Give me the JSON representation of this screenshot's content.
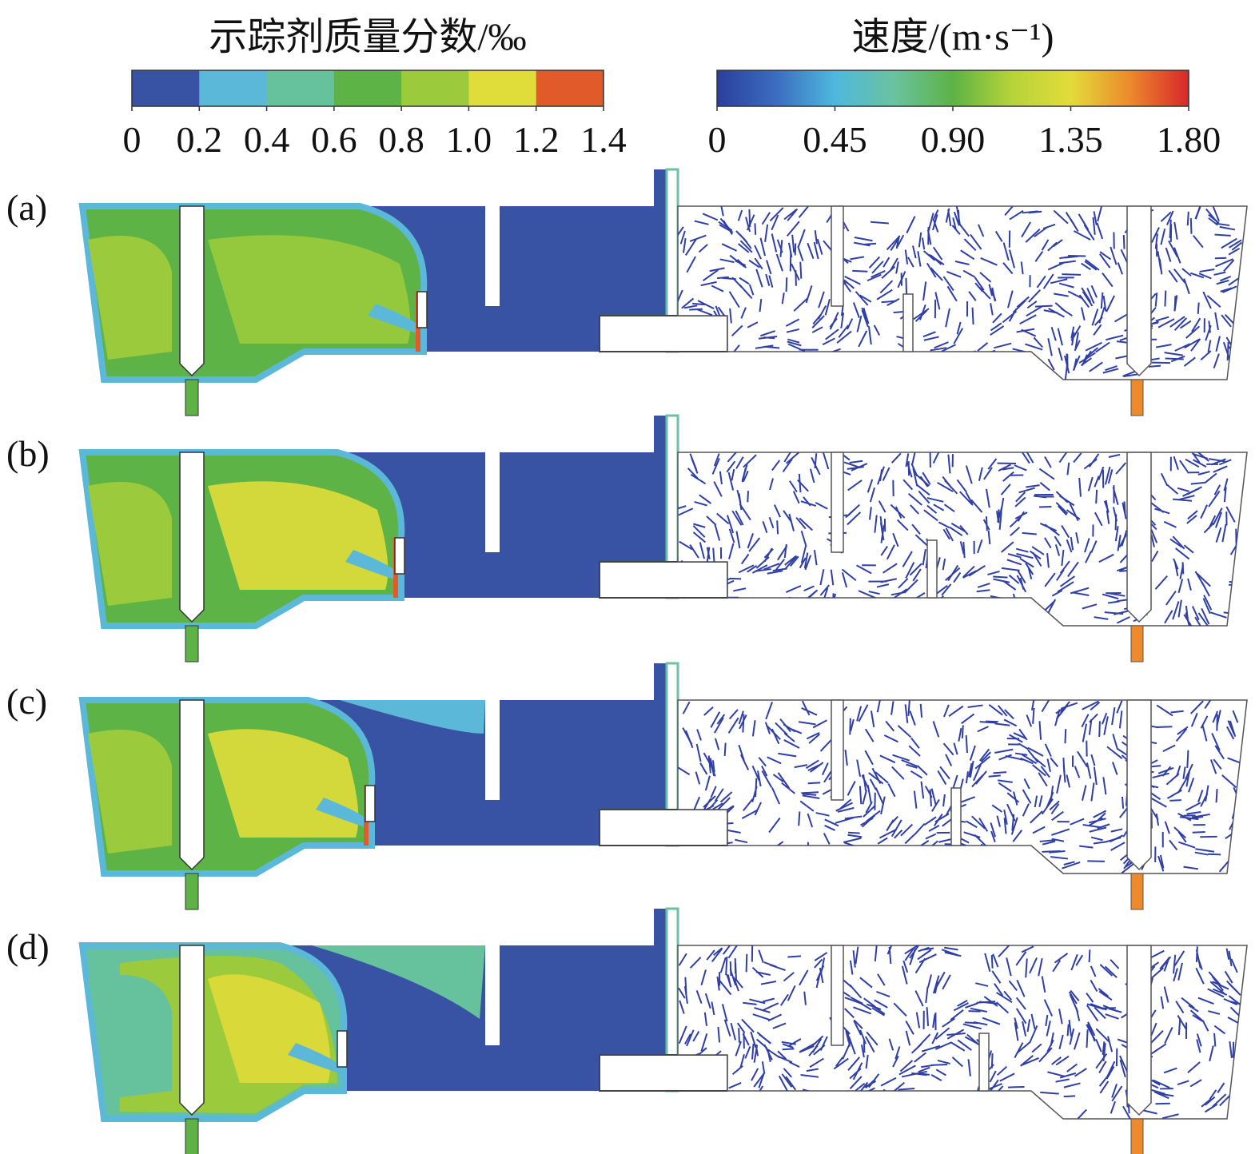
{
  "legends": [
    {
      "title": "示踪剂质量分数/‰",
      "colors": [
        "#3953a4",
        "#5bb8d8",
        "#66c29c",
        "#5db346",
        "#9bcb3c",
        "#e0dc3a",
        "#e05a2a"
      ],
      "ticks": [
        0,
        0.2,
        0.4,
        0.6,
        0.8,
        {
          "value": 1,
          "label": "1.0"
        },
        1.2,
        1.4
      ]
    },
    {
      "title": "速度/(m·s⁻¹)",
      "colors": [
        "#2a3f9c",
        "#3b6cc0",
        "#4fb8de",
        "#6ac2a0",
        "#5db346",
        "#b6d33a",
        "#e3dc3a",
        "#ec8a2c",
        "#d8262a"
      ],
      "ticks": [
        0,
        0.45,
        {
          "value": 0.9,
          "label": "0.90"
        },
        1.35,
        {
          "value": 1.8,
          "label": "1.80"
        }
      ]
    }
  ],
  "panels": [
    {
      "label": "(a)"
    },
    {
      "label": "(b)"
    },
    {
      "label": "(c)"
    },
    {
      "label": "(d)"
    }
  ]
}
